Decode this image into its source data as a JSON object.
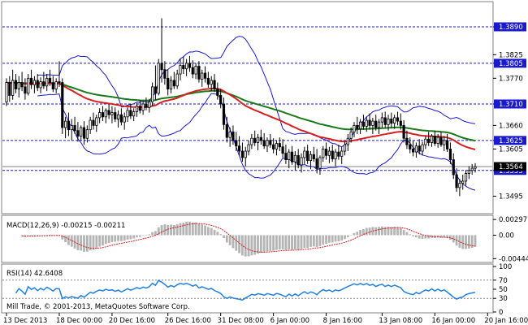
{
  "chart_data": {
    "type": "line",
    "symbol": "EURUSD",
    "timeframe": "H4",
    "price_axis": {
      "ylim": [
        1.3456,
        1.3945
      ],
      "ticks": [
        1.389,
        1.3825,
        1.3805,
        1.377,
        1.371,
        1.366,
        1.3625,
        1.3605,
        1.3555,
        1.3495
      ],
      "tick_labels": [
        "1.3890",
        "1.3825",
        "1.3805",
        "1.3770",
        "1.3710",
        "1.3660",
        "1.3625",
        "1.3605",
        "1.3555",
        "1.3495"
      ]
    },
    "levels": [
      {
        "value": 1.389,
        "label": "1.3890"
      },
      {
        "value": 1.3805,
        "label": "1.3805"
      },
      {
        "value": 1.371,
        "label": "1.3710"
      },
      {
        "value": 1.3625,
        "label": "1.3625"
      },
      {
        "value": 1.3555,
        "label": "1.3555"
      }
    ],
    "current_price": {
      "value": 1.3564,
      "label": "1.3564"
    },
    "x_axis": {
      "tick_labels": [
        "13 Dec 2013",
        "18 Dec 00:00",
        "20 Dec 16:00",
        "26 Dec 16:00",
        "31 Dec 08:00",
        "6 Jan 00:00",
        "8 Jan 16:00",
        "13 Jan 08:00",
        "16 Jan 00:00",
        "20 Jan 16:00"
      ],
      "tick_bar_index": [
        0,
        17,
        34,
        52,
        69,
        86,
        103,
        121,
        138,
        155
      ]
    },
    "candles": [
      {
        "o": 1.3715,
        "h": 1.377,
        "l": 1.3705,
        "c": 1.376
      },
      {
        "o": 1.376,
        "h": 1.3775,
        "l": 1.3715,
        "c": 1.373
      },
      {
        "o": 1.373,
        "h": 1.379,
        "l": 1.372,
        "c": 1.3765
      },
      {
        "o": 1.3765,
        "h": 1.378,
        "l": 1.3735,
        "c": 1.3745
      },
      {
        "o": 1.3745,
        "h": 1.3775,
        "l": 1.3725,
        "c": 1.376
      },
      {
        "o": 1.376,
        "h": 1.3785,
        "l": 1.374,
        "c": 1.375
      },
      {
        "o": 1.375,
        "h": 1.377,
        "l": 1.372,
        "c": 1.3735
      },
      {
        "o": 1.3735,
        "h": 1.378,
        "l": 1.373,
        "c": 1.377
      },
      {
        "o": 1.377,
        "h": 1.379,
        "l": 1.3745,
        "c": 1.3755
      },
      {
        "o": 1.3755,
        "h": 1.3775,
        "l": 1.3735,
        "c": 1.3765
      },
      {
        "o": 1.3765,
        "h": 1.378,
        "l": 1.374,
        "c": 1.3748
      },
      {
        "o": 1.3748,
        "h": 1.3772,
        "l": 1.3735,
        "c": 1.3762
      },
      {
        "o": 1.3762,
        "h": 1.3785,
        "l": 1.3745,
        "c": 1.3752
      },
      {
        "o": 1.3752,
        "h": 1.378,
        "l": 1.374,
        "c": 1.377
      },
      {
        "o": 1.377,
        "h": 1.379,
        "l": 1.3752,
        "c": 1.376
      },
      {
        "o": 1.376,
        "h": 1.3775,
        "l": 1.3738,
        "c": 1.3745
      },
      {
        "o": 1.3745,
        "h": 1.377,
        "l": 1.3735,
        "c": 1.3762
      },
      {
        "o": 1.3762,
        "h": 1.381,
        "l": 1.375,
        "c": 1.376
      },
      {
        "o": 1.376,
        "h": 1.377,
        "l": 1.364,
        "c": 1.3655
      },
      {
        "o": 1.3655,
        "h": 1.368,
        "l": 1.363,
        "c": 1.367
      },
      {
        "o": 1.367,
        "h": 1.369,
        "l": 1.3635,
        "c": 1.365
      },
      {
        "o": 1.365,
        "h": 1.3675,
        "l": 1.3625,
        "c": 1.366
      },
      {
        "o": 1.366,
        "h": 1.368,
        "l": 1.364,
        "c": 1.3648
      },
      {
        "o": 1.3648,
        "h": 1.3668,
        "l": 1.3622,
        "c": 1.3635
      },
      {
        "o": 1.3635,
        "h": 1.366,
        "l": 1.3625,
        "c": 1.3655
      },
      {
        "o": 1.3655,
        "h": 1.367,
        "l": 1.3615,
        "c": 1.363
      },
      {
        "o": 1.363,
        "h": 1.366,
        "l": 1.362,
        "c": 1.365
      },
      {
        "o": 1.365,
        "h": 1.368,
        "l": 1.364,
        "c": 1.3672
      },
      {
        "o": 1.3672,
        "h": 1.369,
        "l": 1.365,
        "c": 1.366
      },
      {
        "o": 1.366,
        "h": 1.3685,
        "l": 1.3645,
        "c": 1.3678
      },
      {
        "o": 1.3678,
        "h": 1.37,
        "l": 1.3665,
        "c": 1.369
      },
      {
        "o": 1.369,
        "h": 1.3705,
        "l": 1.367,
        "c": 1.368
      },
      {
        "o": 1.368,
        "h": 1.37,
        "l": 1.3665,
        "c": 1.3695
      },
      {
        "o": 1.3695,
        "h": 1.371,
        "l": 1.3675,
        "c": 1.3685
      },
      {
        "o": 1.3685,
        "h": 1.3705,
        "l": 1.3665,
        "c": 1.369
      },
      {
        "o": 1.369,
        "h": 1.3702,
        "l": 1.3668,
        "c": 1.3675
      },
      {
        "o": 1.3675,
        "h": 1.3695,
        "l": 1.3655,
        "c": 1.3685
      },
      {
        "o": 1.3685,
        "h": 1.37,
        "l": 1.366,
        "c": 1.3668
      },
      {
        "o": 1.3668,
        "h": 1.369,
        "l": 1.365,
        "c": 1.368
      },
      {
        "o": 1.368,
        "h": 1.3702,
        "l": 1.3668,
        "c": 1.3695
      },
      {
        "o": 1.3695,
        "h": 1.371,
        "l": 1.3675,
        "c": 1.3682
      },
      {
        "o": 1.3682,
        "h": 1.37,
        "l": 1.367,
        "c": 1.3692
      },
      {
        "o": 1.3692,
        "h": 1.3712,
        "l": 1.368,
        "c": 1.3705
      },
      {
        "o": 1.3705,
        "h": 1.372,
        "l": 1.3688,
        "c": 1.3695
      },
      {
        "o": 1.3695,
        "h": 1.3718,
        "l": 1.3685,
        "c": 1.371
      },
      {
        "o": 1.371,
        "h": 1.3725,
        "l": 1.3695,
        "c": 1.3702
      },
      {
        "o": 1.3702,
        "h": 1.3722,
        "l": 1.369,
        "c": 1.3715
      },
      {
        "o": 1.3715,
        "h": 1.376,
        "l": 1.3705,
        "c": 1.375
      },
      {
        "o": 1.375,
        "h": 1.38,
        "l": 1.372,
        "c": 1.3735
      },
      {
        "o": 1.3735,
        "h": 1.3815,
        "l": 1.373,
        "c": 1.3805
      },
      {
        "o": 1.3805,
        "h": 1.391,
        "l": 1.376,
        "c": 1.379
      },
      {
        "o": 1.379,
        "h": 1.381,
        "l": 1.3755,
        "c": 1.377
      },
      {
        "o": 1.377,
        "h": 1.379,
        "l": 1.373,
        "c": 1.3745
      },
      {
        "o": 1.3745,
        "h": 1.3775,
        "l": 1.3735,
        "c": 1.3765
      },
      {
        "o": 1.3765,
        "h": 1.3785,
        "l": 1.3745,
        "c": 1.3752
      },
      {
        "o": 1.3752,
        "h": 1.379,
        "l": 1.3745,
        "c": 1.378
      },
      {
        "o": 1.378,
        "h": 1.3815,
        "l": 1.3765,
        "c": 1.38
      },
      {
        "o": 1.38,
        "h": 1.382,
        "l": 1.378,
        "c": 1.3792
      },
      {
        "o": 1.3792,
        "h": 1.3815,
        "l": 1.3775,
        "c": 1.3805
      },
      {
        "o": 1.3805,
        "h": 1.3822,
        "l": 1.3785,
        "c": 1.3795
      },
      {
        "o": 1.3795,
        "h": 1.3812,
        "l": 1.377,
        "c": 1.378
      },
      {
        "o": 1.378,
        "h": 1.3805,
        "l": 1.3768,
        "c": 1.3798
      },
      {
        "o": 1.3798,
        "h": 1.381,
        "l": 1.376,
        "c": 1.3768
      },
      {
        "o": 1.3768,
        "h": 1.379,
        "l": 1.375,
        "c": 1.3782
      },
      {
        "o": 1.3782,
        "h": 1.3798,
        "l": 1.376,
        "c": 1.377
      },
      {
        "o": 1.377,
        "h": 1.3785,
        "l": 1.3748,
        "c": 1.3756
      },
      {
        "o": 1.3756,
        "h": 1.3775,
        "l": 1.374,
        "c": 1.3765
      },
      {
        "o": 1.3765,
        "h": 1.378,
        "l": 1.3738,
        "c": 1.3745
      },
      {
        "o": 1.3745,
        "h": 1.376,
        "l": 1.372,
        "c": 1.373
      },
      {
        "o": 1.373,
        "h": 1.3745,
        "l": 1.37,
        "c": 1.371
      },
      {
        "o": 1.371,
        "h": 1.3725,
        "l": 1.365,
        "c": 1.3662
      },
      {
        "o": 1.3662,
        "h": 1.368,
        "l": 1.362,
        "c": 1.3632
      },
      {
        "o": 1.3632,
        "h": 1.3655,
        "l": 1.361,
        "c": 1.3645
      },
      {
        "o": 1.3645,
        "h": 1.366,
        "l": 1.3615,
        "c": 1.3625
      },
      {
        "o": 1.3625,
        "h": 1.3645,
        "l": 1.36,
        "c": 1.3612
      },
      {
        "o": 1.3612,
        "h": 1.3635,
        "l": 1.359,
        "c": 1.36
      },
      {
        "o": 1.36,
        "h": 1.362,
        "l": 1.3575,
        "c": 1.3585
      },
      {
        "o": 1.3585,
        "h": 1.361,
        "l": 1.3565,
        "c": 1.36
      },
      {
        "o": 1.36,
        "h": 1.3625,
        "l": 1.359,
        "c": 1.3615
      },
      {
        "o": 1.3615,
        "h": 1.364,
        "l": 1.3605,
        "c": 1.363
      },
      {
        "o": 1.363,
        "h": 1.3648,
        "l": 1.3612,
        "c": 1.362
      },
      {
        "o": 1.362,
        "h": 1.364,
        "l": 1.3602,
        "c": 1.3632
      },
      {
        "o": 1.3632,
        "h": 1.365,
        "l": 1.3615,
        "c": 1.3625
      },
      {
        "o": 1.3625,
        "h": 1.3642,
        "l": 1.3605,
        "c": 1.3612
      },
      {
        "o": 1.3612,
        "h": 1.3632,
        "l": 1.3598,
        "c": 1.3625
      },
      {
        "o": 1.3625,
        "h": 1.364,
        "l": 1.3608,
        "c": 1.3615
      },
      {
        "o": 1.3615,
        "h": 1.363,
        "l": 1.3595,
        "c": 1.3605
      },
      {
        "o": 1.3605,
        "h": 1.3625,
        "l": 1.359,
        "c": 1.3618
      },
      {
        "o": 1.3618,
        "h": 1.3632,
        "l": 1.36,
        "c": 1.361
      },
      {
        "o": 1.361,
        "h": 1.3628,
        "l": 1.3585,
        "c": 1.3595
      },
      {
        "o": 1.3595,
        "h": 1.3615,
        "l": 1.357,
        "c": 1.358
      },
      {
        "o": 1.358,
        "h": 1.3605,
        "l": 1.356,
        "c": 1.3598
      },
      {
        "o": 1.3598,
        "h": 1.3612,
        "l": 1.3568,
        "c": 1.3575
      },
      {
        "o": 1.3575,
        "h": 1.36,
        "l": 1.3555,
        "c": 1.359
      },
      {
        "o": 1.359,
        "h": 1.3605,
        "l": 1.356,
        "c": 1.3568
      },
      {
        "o": 1.3568,
        "h": 1.3595,
        "l": 1.355,
        "c": 1.3585
      },
      {
        "o": 1.3585,
        "h": 1.361,
        "l": 1.357,
        "c": 1.36
      },
      {
        "o": 1.36,
        "h": 1.3615,
        "l": 1.357,
        "c": 1.3578
      },
      {
        "o": 1.3578,
        "h": 1.36,
        "l": 1.3558,
        "c": 1.3592
      },
      {
        "o": 1.3592,
        "h": 1.361,
        "l": 1.3575,
        "c": 1.3582
      },
      {
        "o": 1.3582,
        "h": 1.3605,
        "l": 1.3548,
        "c": 1.356
      },
      {
        "o": 1.356,
        "h": 1.359,
        "l": 1.3545,
        "c": 1.3585
      },
      {
        "o": 1.3585,
        "h": 1.3612,
        "l": 1.3575,
        "c": 1.3605
      },
      {
        "o": 1.3605,
        "h": 1.362,
        "l": 1.358,
        "c": 1.359
      },
      {
        "o": 1.359,
        "h": 1.361,
        "l": 1.3572,
        "c": 1.36
      },
      {
        "o": 1.36,
        "h": 1.3615,
        "l": 1.3575,
        "c": 1.3582
      },
      {
        "o": 1.3582,
        "h": 1.3605,
        "l": 1.3565,
        "c": 1.3598
      },
      {
        "o": 1.3598,
        "h": 1.3615,
        "l": 1.358,
        "c": 1.3588
      },
      {
        "o": 1.3588,
        "h": 1.361,
        "l": 1.357,
        "c": 1.36
      },
      {
        "o": 1.36,
        "h": 1.3622,
        "l": 1.359,
        "c": 1.3615
      },
      {
        "o": 1.3615,
        "h": 1.364,
        "l": 1.36,
        "c": 1.363
      },
      {
        "o": 1.363,
        "h": 1.3655,
        "l": 1.362,
        "c": 1.3645
      },
      {
        "o": 1.3645,
        "h": 1.3668,
        "l": 1.3632,
        "c": 1.366
      },
      {
        "o": 1.366,
        "h": 1.368,
        "l": 1.364,
        "c": 1.3652
      },
      {
        "o": 1.3652,
        "h": 1.3675,
        "l": 1.364,
        "c": 1.3668
      },
      {
        "o": 1.3668,
        "h": 1.3685,
        "l": 1.365,
        "c": 1.3658
      },
      {
        "o": 1.3658,
        "h": 1.368,
        "l": 1.3645,
        "c": 1.3672
      },
      {
        "o": 1.3672,
        "h": 1.3688,
        "l": 1.365,
        "c": 1.366
      },
      {
        "o": 1.366,
        "h": 1.3678,
        "l": 1.364,
        "c": 1.367
      },
      {
        "o": 1.367,
        "h": 1.3685,
        "l": 1.3648,
        "c": 1.3655
      },
      {
        "o": 1.3655,
        "h": 1.3675,
        "l": 1.364,
        "c": 1.3668
      },
      {
        "o": 1.3668,
        "h": 1.369,
        "l": 1.3655,
        "c": 1.3678
      },
      {
        "o": 1.3678,
        "h": 1.3692,
        "l": 1.3655,
        "c": 1.3662
      },
      {
        "o": 1.3662,
        "h": 1.3685,
        "l": 1.3648,
        "c": 1.3675
      },
      {
        "o": 1.3675,
        "h": 1.369,
        "l": 1.3655,
        "c": 1.3665
      },
      {
        "o": 1.3665,
        "h": 1.3685,
        "l": 1.3652,
        "c": 1.3678
      },
      {
        "o": 1.3678,
        "h": 1.3692,
        "l": 1.366,
        "c": 1.367
      },
      {
        "o": 1.367,
        "h": 1.3688,
        "l": 1.365,
        "c": 1.366
      },
      {
        "o": 1.366,
        "h": 1.3672,
        "l": 1.362,
        "c": 1.363
      },
      {
        "o": 1.363,
        "h": 1.3648,
        "l": 1.3605,
        "c": 1.3615
      },
      {
        "o": 1.3615,
        "h": 1.3632,
        "l": 1.3595,
        "c": 1.3605
      },
      {
        "o": 1.3605,
        "h": 1.3625,
        "l": 1.3588,
        "c": 1.3598
      },
      {
        "o": 1.3598,
        "h": 1.362,
        "l": 1.3585,
        "c": 1.3612
      },
      {
        "o": 1.3612,
        "h": 1.3628,
        "l": 1.3592,
        "c": 1.36
      },
      {
        "o": 1.36,
        "h": 1.3622,
        "l": 1.359,
        "c": 1.3615
      },
      {
        "o": 1.3615,
        "h": 1.3635,
        "l": 1.3605,
        "c": 1.3628
      },
      {
        "o": 1.3628,
        "h": 1.3645,
        "l": 1.3612,
        "c": 1.362
      },
      {
        "o": 1.362,
        "h": 1.364,
        "l": 1.361,
        "c": 1.3635
      },
      {
        "o": 1.3635,
        "h": 1.3648,
        "l": 1.3612,
        "c": 1.3618
      },
      {
        "o": 1.3618,
        "h": 1.364,
        "l": 1.3608,
        "c": 1.3632
      },
      {
        "o": 1.3632,
        "h": 1.3645,
        "l": 1.361,
        "c": 1.3615
      },
      {
        "o": 1.3615,
        "h": 1.3635,
        "l": 1.36,
        "c": 1.3625
      },
      {
        "o": 1.3625,
        "h": 1.364,
        "l": 1.3598,
        "c": 1.3605
      },
      {
        "o": 1.3605,
        "h": 1.362,
        "l": 1.357,
        "c": 1.358
      },
      {
        "o": 1.358,
        "h": 1.3595,
        "l": 1.3535,
        "c": 1.3545
      },
      {
        "o": 1.3545,
        "h": 1.356,
        "l": 1.3505,
        "c": 1.3515
      },
      {
        "o": 1.3515,
        "h": 1.3535,
        "l": 1.3495,
        "c": 1.3525
      },
      {
        "o": 1.3525,
        "h": 1.3545,
        "l": 1.351,
        "c": 1.353
      },
      {
        "o": 1.353,
        "h": 1.3555,
        "l": 1.352,
        "c": 1.3548
      },
      {
        "o": 1.3548,
        "h": 1.3565,
        "l": 1.3535,
        "c": 1.3555
      },
      {
        "o": 1.3555,
        "h": 1.357,
        "l": 1.3545,
        "c": 1.356
      },
      {
        "o": 1.356,
        "h": 1.3572,
        "l": 1.355,
        "c": 1.3564
      }
    ],
    "indicators": {
      "macd": {
        "label": "MACD(12,26,9) -0.00215 -0.00211",
        "ylim": [
          -0.005,
          0.0033
        ],
        "ticks": [
          0.00297,
          0.0,
          -0.00444
        ],
        "tick_labels": [
          "0.00297",
          "0.00",
          "-0.00444"
        ]
      },
      "rsi": {
        "label": "RSI(14) 42.6408",
        "ylim": [
          0,
          100
        ],
        "levels": [
          30,
          70
        ],
        "ticks": [
          100,
          70,
          50,
          30,
          0
        ],
        "tick_labels": [
          "100",
          "70",
          "50",
          "30",
          "0"
        ]
      }
    },
    "colors": {
      "candle": "#000000",
      "bollinger": "#1a1acc",
      "ma_fast": "#d62020",
      "ma_slow": "#1a7a1a",
      "levels": "#1a1acc",
      "macd_hist": "#b4b4b4",
      "macd_signal": "#d62020",
      "rsi_line": "#2080e0",
      "tag_bg": "#1a1acc",
      "tag_current": "#000000"
    }
  },
  "footer": {
    "copyright": "Mill Trade, © 2001-2013, MetaQuotes Software Corp."
  }
}
